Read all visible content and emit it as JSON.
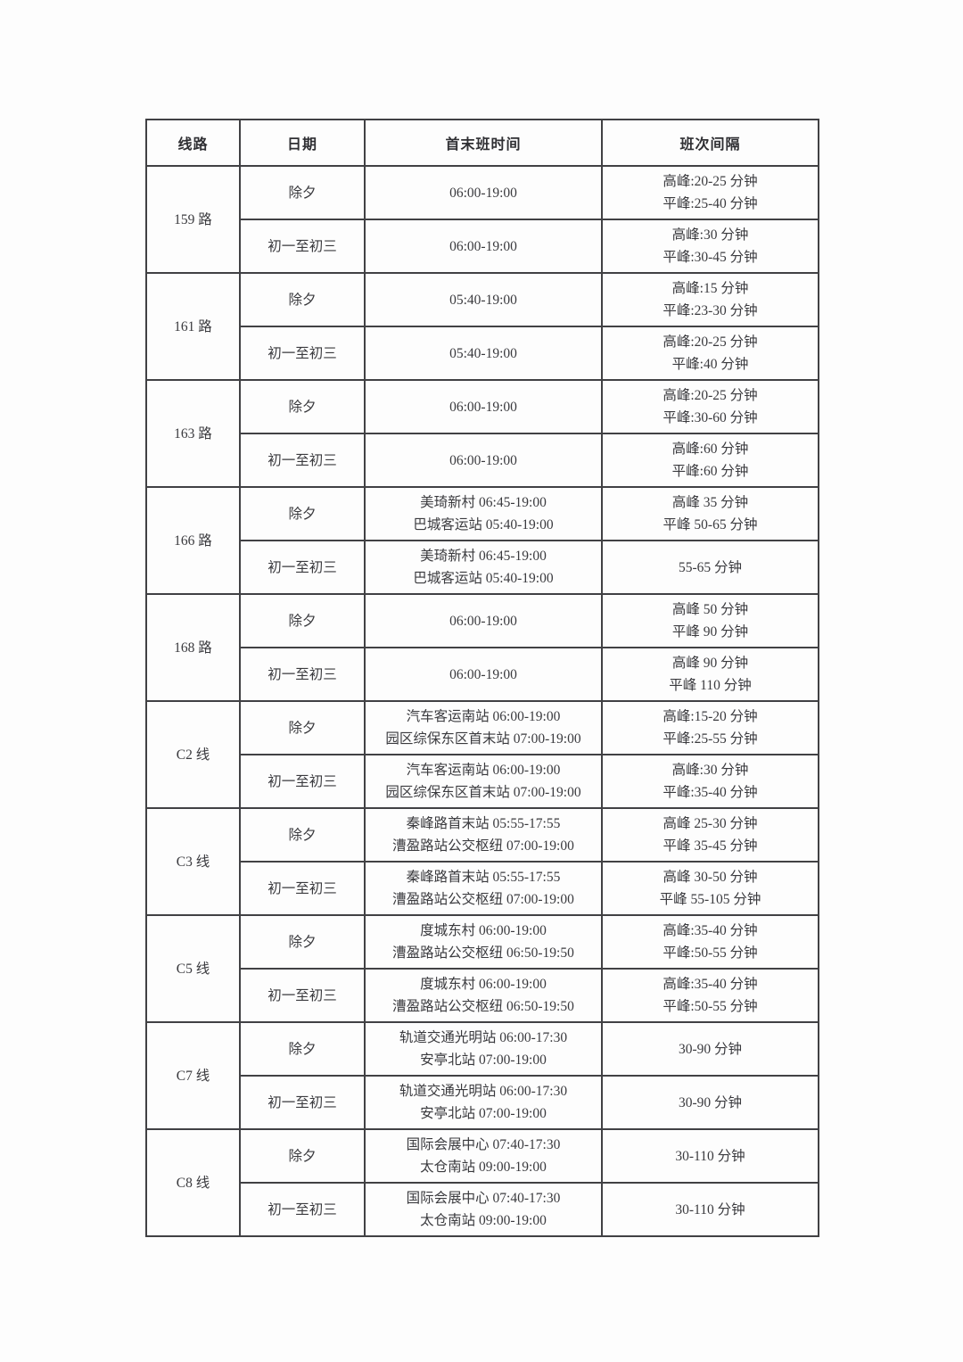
{
  "colors": {
    "page_background": "#fdfdfd",
    "border": "#414144",
    "text": "#3a3a3e"
  },
  "table": {
    "headers": [
      "线路",
      "日期",
      "首末班时间",
      "班次间隔"
    ],
    "lines": [
      {
        "line": "159 路",
        "entries": [
          {
            "date": "除夕",
            "time": [
              "06:00-19:00"
            ],
            "interval": [
              "高峰:20-25 分钟",
              "平峰:25-40 分钟"
            ]
          },
          {
            "date": "初一至初三",
            "time": [
              "06:00-19:00"
            ],
            "interval": [
              "高峰:30 分钟",
              "平峰:30-45 分钟"
            ]
          }
        ]
      },
      {
        "line": "161 路",
        "entries": [
          {
            "date": "除夕",
            "time": [
              "05:40-19:00"
            ],
            "interval": [
              "高峰:15 分钟",
              "平峰:23-30 分钟"
            ]
          },
          {
            "date": "初一至初三",
            "time": [
              "05:40-19:00"
            ],
            "interval": [
              "高峰:20-25 分钟",
              "平峰:40 分钟"
            ]
          }
        ]
      },
      {
        "line": "163 路",
        "entries": [
          {
            "date": "除夕",
            "time": [
              "06:00-19:00"
            ],
            "interval": [
              "高峰:20-25 分钟",
              "平峰:30-60 分钟"
            ]
          },
          {
            "date": "初一至初三",
            "time": [
              "06:00-19:00"
            ],
            "interval": [
              "高峰:60 分钟",
              "平峰:60 分钟"
            ]
          }
        ]
      },
      {
        "line": "166 路",
        "entries": [
          {
            "date": "除夕",
            "time": [
              "美琦新村 06:45-19:00",
              "巴城客运站 05:40-19:00"
            ],
            "interval": [
              "高峰 35 分钟",
              "平峰 50-65 分钟"
            ]
          },
          {
            "date": "初一至初三",
            "time": [
              "美琦新村 06:45-19:00",
              "巴城客运站 05:40-19:00"
            ],
            "interval": [
              "55-65 分钟"
            ]
          }
        ]
      },
      {
        "line": "168 路",
        "entries": [
          {
            "date": "除夕",
            "time": [
              "06:00-19:00"
            ],
            "interval": [
              "高峰 50 分钟",
              "平峰 90 分钟"
            ]
          },
          {
            "date": "初一至初三",
            "time": [
              "06:00-19:00"
            ],
            "interval": [
              "高峰 90 分钟",
              "平峰 110 分钟"
            ]
          }
        ]
      },
      {
        "line": "C2 线",
        "entries": [
          {
            "date": "除夕",
            "time": [
              "汽车客运南站 06:00-19:00",
              "园区综保东区首末站 07:00-19:00"
            ],
            "interval": [
              "高峰:15-20 分钟",
              "平峰:25-55 分钟"
            ]
          },
          {
            "date": "初一至初三",
            "time": [
              "汽车客运南站 06:00-19:00",
              "园区综保东区首末站 07:00-19:00"
            ],
            "interval": [
              "高峰:30 分钟",
              "平峰:35-40 分钟"
            ]
          }
        ]
      },
      {
        "line": "C3 线",
        "entries": [
          {
            "date": "除夕",
            "time": [
              "秦峰路首末站 05:55-17:55",
              "漕盈路站公交枢纽 07:00-19:00"
            ],
            "interval": [
              "高峰 25-30 分钟",
              "平峰 35-45 分钟"
            ]
          },
          {
            "date": "初一至初三",
            "time": [
              "秦峰路首末站 05:55-17:55",
              "漕盈路站公交枢纽 07:00-19:00"
            ],
            "interval": [
              "高峰 30-50 分钟",
              "平峰 55-105 分钟"
            ]
          }
        ]
      },
      {
        "line": "C5 线",
        "entries": [
          {
            "date": "除夕",
            "time": [
              "度城东村 06:00-19:00",
              "漕盈路站公交枢纽 06:50-19:50"
            ],
            "interval": [
              "高峰:35-40 分钟",
              "平峰:50-55 分钟"
            ]
          },
          {
            "date": "初一至初三",
            "time": [
              "度城东村 06:00-19:00",
              "漕盈路站公交枢纽 06:50-19:50"
            ],
            "interval": [
              "高峰:35-40 分钟",
              "平峰:50-55 分钟"
            ]
          }
        ]
      },
      {
        "line": "C7 线",
        "entries": [
          {
            "date": "除夕",
            "time": [
              "轨道交通光明站 06:00-17:30",
              "安亭北站 07:00-19:00"
            ],
            "interval": [
              "30-90 分钟"
            ]
          },
          {
            "date": "初一至初三",
            "time": [
              "轨道交通光明站 06:00-17:30",
              "安亭北站 07:00-19:00"
            ],
            "interval": [
              "30-90 分钟"
            ]
          }
        ]
      },
      {
        "line": "C8 线",
        "entries": [
          {
            "date": "除夕",
            "time": [
              "国际会展中心 07:40-17:30",
              "太仓南站 09:00-19:00"
            ],
            "interval": [
              "30-110 分钟"
            ]
          },
          {
            "date": "初一至初三",
            "time": [
              "国际会展中心 07:40-17:30",
              "太仓南站 09:00-19:00"
            ],
            "interval": [
              "30-110 分钟"
            ]
          }
        ]
      }
    ]
  }
}
